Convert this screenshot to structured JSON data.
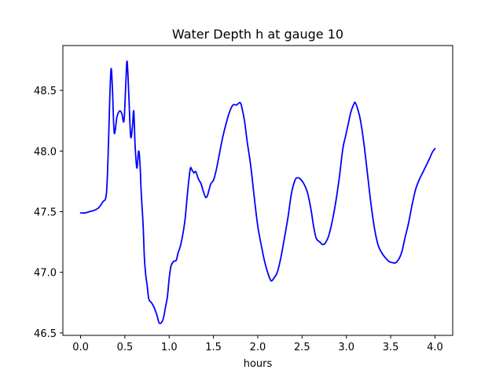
{
  "chart_data": {
    "type": "line",
    "title": "Water Depth h at gauge 10",
    "xlabel": "hours",
    "ylabel": "",
    "xlim": [
      -0.2,
      4.2
    ],
    "ylim": [
      46.48,
      48.87
    ],
    "xticks": [
      0.0,
      0.5,
      1.0,
      1.5,
      2.0,
      2.5,
      3.0,
      3.5,
      4.0
    ],
    "xtick_labels": [
      "0.0",
      "0.5",
      "1.0",
      "1.5",
      "2.0",
      "2.5",
      "3.0",
      "3.5",
      "4.0"
    ],
    "yticks": [
      46.5,
      47.0,
      47.5,
      48.0,
      48.5
    ],
    "ytick_labels": [
      "46.5",
      "47.0",
      "47.5",
      "48.0",
      "48.5"
    ],
    "grid": false,
    "legend": "none",
    "series": [
      {
        "color": "#0000ff",
        "x": [
          0.0,
          0.05,
          0.1,
          0.15,
          0.2,
          0.25,
          0.29,
          0.31,
          0.33,
          0.345,
          0.36,
          0.38,
          0.41,
          0.44,
          0.465,
          0.49,
          0.51,
          0.525,
          0.545,
          0.565,
          0.585,
          0.6,
          0.615,
          0.635,
          0.655,
          0.67,
          0.685,
          0.705,
          0.72,
          0.735,
          0.75,
          0.77,
          0.8,
          0.83,
          0.86,
          0.89,
          0.93,
          0.96,
          0.98,
          1.0,
          1.02,
          1.05,
          1.08,
          1.1,
          1.12,
          1.14,
          1.16,
          1.18,
          1.2,
          1.22,
          1.24,
          1.26,
          1.28,
          1.3,
          1.33,
          1.36,
          1.38,
          1.41,
          1.43,
          1.45,
          1.47,
          1.5,
          1.53,
          1.56,
          1.6,
          1.64,
          1.68,
          1.72,
          1.76,
          1.8,
          1.82,
          1.85,
          1.88,
          1.92,
          1.96,
          2.0,
          2.04,
          2.08,
          2.12,
          2.15,
          2.18,
          2.22,
          2.26,
          2.3,
          2.34,
          2.38,
          2.42,
          2.45,
          2.48,
          2.52,
          2.56,
          2.6,
          2.63,
          2.66,
          2.7,
          2.73,
          2.76,
          2.8,
          2.84,
          2.88,
          2.92,
          2.96,
          2.99,
          3.02,
          3.05,
          3.08,
          3.1,
          3.13,
          3.16,
          3.2,
          3.24,
          3.28,
          3.32,
          3.36,
          3.4,
          3.44,
          3.48,
          3.52,
          3.56,
          3.6,
          3.63,
          3.66,
          3.7,
          3.74,
          3.78,
          3.82,
          3.86,
          3.9,
          3.94,
          3.97,
          4.0
        ],
        "y": [
          47.49,
          47.49,
          47.5,
          47.51,
          47.53,
          47.58,
          47.64,
          47.95,
          48.45,
          48.68,
          48.5,
          48.15,
          48.28,
          48.33,
          48.31,
          48.25,
          48.55,
          48.74,
          48.45,
          48.12,
          48.2,
          48.33,
          48.05,
          47.86,
          48.0,
          47.9,
          47.65,
          47.4,
          47.12,
          46.98,
          46.9,
          46.78,
          46.75,
          46.71,
          46.65,
          46.58,
          46.61,
          46.72,
          46.8,
          46.95,
          47.05,
          47.09,
          47.1,
          47.16,
          47.2,
          47.26,
          47.34,
          47.44,
          47.6,
          47.75,
          47.86,
          47.84,
          47.82,
          47.83,
          47.77,
          47.73,
          47.68,
          47.62,
          47.63,
          47.68,
          47.73,
          47.76,
          47.84,
          47.95,
          48.1,
          48.22,
          48.32,
          48.38,
          48.38,
          48.4,
          48.36,
          48.25,
          48.08,
          47.88,
          47.62,
          47.38,
          47.22,
          47.08,
          46.98,
          46.93,
          46.95,
          47.0,
          47.12,
          47.28,
          47.45,
          47.65,
          47.76,
          47.78,
          47.77,
          47.73,
          47.66,
          47.52,
          47.38,
          47.28,
          47.25,
          47.23,
          47.24,
          47.3,
          47.42,
          47.58,
          47.78,
          48.02,
          48.12,
          48.22,
          48.32,
          48.38,
          48.4,
          48.34,
          48.25,
          48.05,
          47.8,
          47.55,
          47.35,
          47.22,
          47.16,
          47.12,
          47.09,
          47.08,
          47.08,
          47.12,
          47.18,
          47.28,
          47.4,
          47.55,
          47.68,
          47.76,
          47.82,
          47.88,
          47.94,
          47.99,
          48.02
        ]
      }
    ]
  }
}
